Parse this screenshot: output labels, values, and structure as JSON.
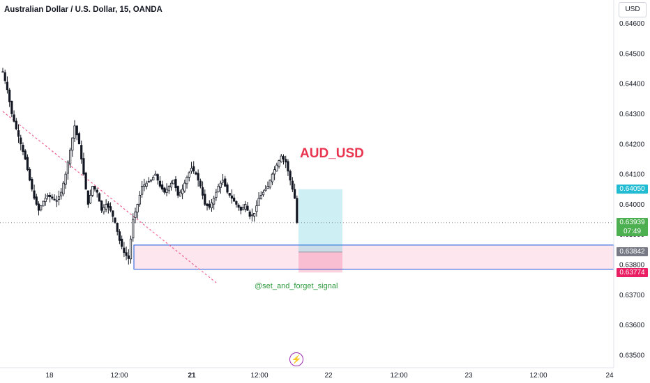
{
  "header": {
    "symbol_title": "Australian Dollar / U.S. Dollar, 15, OANDA",
    "currency": "USD"
  },
  "annotations": {
    "pair_label": "AUD_USD",
    "signal_label": "@set_and_forget_signal",
    "bolt_icon": "lightning-icon"
  },
  "price_tags": [
    {
      "id": "target",
      "value": "0.64050",
      "color": "#22bcd2"
    },
    {
      "id": "last",
      "value": "0.63939",
      "sub": "07:49",
      "color": "#4caf50"
    },
    {
      "id": "entry",
      "value": "0.63842",
      "color": "#787b86"
    },
    {
      "id": "stop",
      "value": "0.63774",
      "color": "#e91e63"
    }
  ],
  "chart_data": {
    "type": "candlestick",
    "symbol": "Australian Dollar / U.S. Dollar",
    "interval": "15",
    "source": "OANDA",
    "ylim": [
      0.6348,
      0.6463
    ],
    "y_ticks": [
      "0.64600",
      "0.64500",
      "0.64400",
      "0.64300",
      "0.64200",
      "0.64100",
      "0.64000",
      "0.63900",
      "0.63800",
      "0.63700",
      "0.63600",
      "0.63500"
    ],
    "x_ticks": [
      {
        "label": "18",
        "bold": false
      },
      {
        "label": "12:00",
        "bold": false
      },
      {
        "label": "21",
        "bold": true
      },
      {
        "label": "12:00",
        "bold": false
      },
      {
        "label": "22",
        "bold": false
      },
      {
        "label": "12:00",
        "bold": false
      },
      {
        "label": "23",
        "bold": false
      },
      {
        "label": "12:00",
        "bold": false
      },
      {
        "label": "24",
        "bold": false
      }
    ],
    "price_path": [
      [
        0,
        0.6444
      ],
      [
        2,
        0.6438
      ],
      [
        4,
        0.643
      ],
      [
        6,
        0.6425
      ],
      [
        8,
        0.642
      ],
      [
        10,
        0.6415
      ],
      [
        12,
        0.6408
      ],
      [
        14,
        0.6402
      ],
      [
        16,
        0.6398
      ],
      [
        18,
        0.6401
      ],
      [
        20,
        0.6403
      ],
      [
        22,
        0.6402
      ],
      [
        24,
        0.6401
      ],
      [
        26,
        0.6404
      ],
      [
        28,
        0.641
      ],
      [
        30,
        0.6418
      ],
      [
        32,
        0.6426
      ],
      [
        34,
        0.642
      ],
      [
        36,
        0.641
      ],
      [
        38,
        0.64
      ],
      [
        40,
        0.6406
      ],
      [
        42,
        0.6404
      ],
      [
        44,
        0.6398
      ],
      [
        46,
        0.64
      ],
      [
        48,
        0.6398
      ],
      [
        50,
        0.6394
      ],
      [
        52,
        0.6388
      ],
      [
        54,
        0.6384
      ],
      [
        56,
        0.6382
      ],
      [
        58,
        0.6395
      ],
      [
        60,
        0.64
      ],
      [
        62,
        0.6406
      ],
      [
        64,
        0.6407
      ],
      [
        66,
        0.6408
      ],
      [
        68,
        0.641
      ],
      [
        70,
        0.6406
      ],
      [
        72,
        0.6404
      ],
      [
        74,
        0.6406
      ],
      [
        76,
        0.6408
      ],
      [
        78,
        0.6403
      ],
      [
        80,
        0.6405
      ],
      [
        82,
        0.6409
      ],
      [
        84,
        0.6412
      ],
      [
        86,
        0.641
      ],
      [
        88,
        0.6406
      ],
      [
        90,
        0.64
      ],
      [
        92,
        0.6399
      ],
      [
        94,
        0.6402
      ],
      [
        96,
        0.6406
      ],
      [
        98,
        0.6408
      ],
      [
        100,
        0.6404
      ],
      [
        102,
        0.6402
      ],
      [
        104,
        0.64
      ],
      [
        106,
        0.6398
      ],
      [
        108,
        0.64
      ],
      [
        110,
        0.6396
      ],
      [
        112,
        0.6397
      ],
      [
        114,
        0.6402
      ],
      [
        116,
        0.6404
      ],
      [
        118,
        0.6406
      ],
      [
        120,
        0.641
      ],
      [
        122,
        0.6413
      ],
      [
        124,
        0.6416
      ],
      [
        126,
        0.6414
      ],
      [
        128,
        0.6408
      ],
      [
        130,
        0.6402
      ],
      [
        131,
        0.6394
      ]
    ],
    "drawings": {
      "demand_zone": {
        "top": 0.63865,
        "bottom": 0.63785
      },
      "entry": 0.63842,
      "take_profit": 0.6405,
      "stop_loss": 0.63774,
      "last_price": 0.63939,
      "last_price_countdown": "07:49"
    }
  }
}
